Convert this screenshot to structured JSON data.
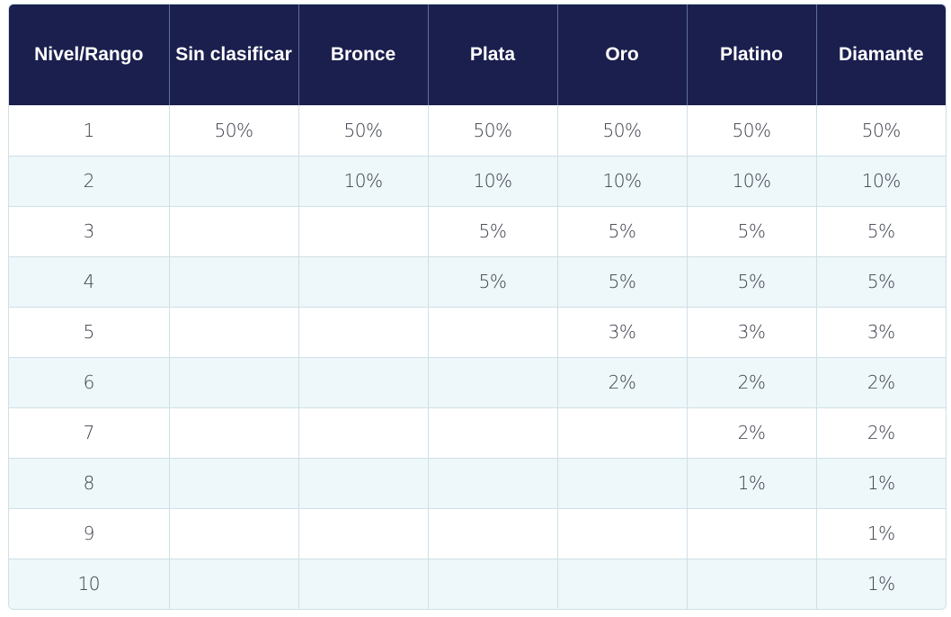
{
  "table": {
    "headers": [
      "Nivel/Rango",
      "Sin clasificar",
      "Bronce",
      "Plata",
      "Oro",
      "Platino",
      "Diamante"
    ],
    "rows": [
      [
        "1",
        "50%",
        "50%",
        "50%",
        "50%",
        "50%",
        "50%"
      ],
      [
        "2",
        "",
        "10%",
        "10%",
        "10%",
        "10%",
        "10%"
      ],
      [
        "3",
        "",
        "",
        "5%",
        "5%",
        "5%",
        "5%"
      ],
      [
        "4",
        "",
        "",
        "5%",
        "5%",
        "5%",
        "5%"
      ],
      [
        "5",
        "",
        "",
        "",
        "3%",
        "3%",
        "3%"
      ],
      [
        "6",
        "",
        "",
        "",
        "2%",
        "2%",
        "2%"
      ],
      [
        "7",
        "",
        "",
        "",
        "",
        "2%",
        "2%"
      ],
      [
        "8",
        "",
        "",
        "",
        "",
        "1%",
        "1%"
      ],
      [
        "9",
        "",
        "",
        "",
        "",
        "",
        "1%"
      ],
      [
        "10",
        "",
        "",
        "",
        "",
        "",
        "1%"
      ]
    ]
  },
  "colors": {
    "header_bg": "#1b1f4e",
    "header_text": "#ffffff",
    "stripe_bg": "#eef7f9",
    "border": "#cfe0e8",
    "cell_text": "#3a3d4a"
  }
}
